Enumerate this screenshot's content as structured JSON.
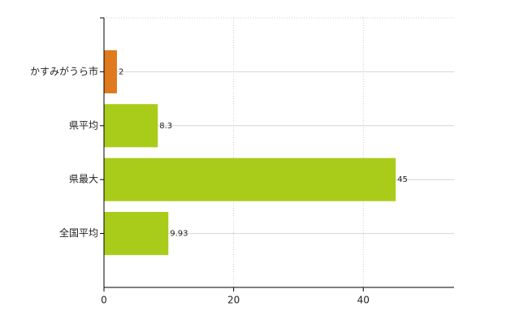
{
  "chart_data": {
    "type": "barh",
    "categories": [
      "かすみがうら市",
      "県平均",
      "県最大",
      "全国平均"
    ],
    "values": [
      2,
      8.3,
      45,
      9.93
    ],
    "colors": [
      "#e07a1f",
      "#a9cc1a",
      "#a9cc1a",
      "#a9cc1a"
    ],
    "xlim": [
      0,
      54
    ],
    "xticks": [
      0,
      20,
      40
    ],
    "grid": true
  }
}
